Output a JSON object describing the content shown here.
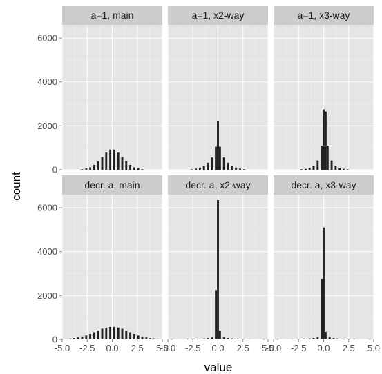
{
  "chart_data": {
    "type": "bar",
    "subtype": "faceted-histogram",
    "xlabel": "value",
    "ylabel": "count",
    "xlim": [
      -5.0,
      5.0
    ],
    "ylim": [
      0,
      6600
    ],
    "x_ticks": [
      -5.0,
      -2.5,
      0.0,
      2.5,
      5.0
    ],
    "x_tick_labels": [
      "-5.0",
      "-2.5",
      "0.0",
      "2.5",
      "5.0"
    ],
    "y_ticks": [
      0,
      2000,
      4000,
      6000
    ],
    "y_tick_labels": [
      "0",
      "2000",
      "4000",
      "6000"
    ],
    "grid": true,
    "bin_width": 0.2,
    "colors": {
      "panel_bg": "#e5e5e5",
      "strip_bg": "#cccccc",
      "grid": "#f2f2f2",
      "bar": "#222222"
    },
    "panels": [
      {
        "label": "a=1, main",
        "bins": [
          {
            "x": -3.0,
            "count": 20
          },
          {
            "x": -2.6,
            "count": 60
          },
          {
            "x": -2.2,
            "count": 110
          },
          {
            "x": -1.8,
            "count": 220
          },
          {
            "x": -1.4,
            "count": 380
          },
          {
            "x": -1.0,
            "count": 580
          },
          {
            "x": -0.6,
            "count": 780
          },
          {
            "x": -0.2,
            "count": 920
          },
          {
            "x": 0.2,
            "count": 920
          },
          {
            "x": 0.6,
            "count": 780
          },
          {
            "x": 1.0,
            "count": 580
          },
          {
            "x": 1.4,
            "count": 380
          },
          {
            "x": 1.8,
            "count": 220
          },
          {
            "x": 2.2,
            "count": 110
          },
          {
            "x": 2.6,
            "count": 60
          },
          {
            "x": 3.0,
            "count": 20
          }
        ]
      },
      {
        "label": "a=1, x2-way",
        "bins": [
          {
            "x": -2.6,
            "count": 20
          },
          {
            "x": -2.2,
            "count": 50
          },
          {
            "x": -1.8,
            "count": 100
          },
          {
            "x": -1.4,
            "count": 180
          },
          {
            "x": -1.0,
            "count": 320
          },
          {
            "x": -0.6,
            "count": 560
          },
          {
            "x": -0.2,
            "count": 1050
          },
          {
            "x": 0.0,
            "count": 2200
          },
          {
            "x": 0.2,
            "count": 1050
          },
          {
            "x": 0.6,
            "count": 560
          },
          {
            "x": 1.0,
            "count": 320
          },
          {
            "x": 1.4,
            "count": 180
          },
          {
            "x": 1.8,
            "count": 100
          },
          {
            "x": 2.2,
            "count": 50
          },
          {
            "x": 2.6,
            "count": 20
          }
        ]
      },
      {
        "label": "a=1, x3-way",
        "bins": [
          {
            "x": -2.2,
            "count": 20
          },
          {
            "x": -1.8,
            "count": 40
          },
          {
            "x": -1.4,
            "count": 90
          },
          {
            "x": -1.0,
            "count": 180
          },
          {
            "x": -0.6,
            "count": 420
          },
          {
            "x": -0.2,
            "count": 1100
          },
          {
            "x": 0.0,
            "count": 2750
          },
          {
            "x": 0.2,
            "count": 2650
          },
          {
            "x": 0.4,
            "count": 1100
          },
          {
            "x": 0.8,
            "count": 420
          },
          {
            "x": 1.2,
            "count": 180
          },
          {
            "x": 1.6,
            "count": 90
          },
          {
            "x": 2.0,
            "count": 40
          },
          {
            "x": 2.4,
            "count": 20
          }
        ]
      },
      {
        "label": "decr. a, main",
        "bins": [
          {
            "x": -4.6,
            "count": 20
          },
          {
            "x": -4.2,
            "count": 40
          },
          {
            "x": -3.8,
            "count": 60
          },
          {
            "x": -3.4,
            "count": 90
          },
          {
            "x": -3.0,
            "count": 130
          },
          {
            "x": -2.6,
            "count": 180
          },
          {
            "x": -2.2,
            "count": 250
          },
          {
            "x": -1.8,
            "count": 330
          },
          {
            "x": -1.4,
            "count": 410
          },
          {
            "x": -1.0,
            "count": 490
          },
          {
            "x": -0.6,
            "count": 540
          },
          {
            "x": -0.2,
            "count": 570
          },
          {
            "x": 0.2,
            "count": 570
          },
          {
            "x": 0.6,
            "count": 540
          },
          {
            "x": 1.0,
            "count": 490
          },
          {
            "x": 1.4,
            "count": 410
          },
          {
            "x": 1.8,
            "count": 330
          },
          {
            "x": 2.2,
            "count": 250
          },
          {
            "x": 2.6,
            "count": 180
          },
          {
            "x": 3.0,
            "count": 130
          },
          {
            "x": 3.4,
            "count": 90
          },
          {
            "x": 3.8,
            "count": 60
          },
          {
            "x": 4.2,
            "count": 40
          },
          {
            "x": 4.6,
            "count": 20
          }
        ]
      },
      {
        "label": "decr. a, x2-way",
        "bins": [
          {
            "x": -4.6,
            "count": 10
          },
          {
            "x": -3.0,
            "count": 20
          },
          {
            "x": -2.0,
            "count": 30
          },
          {
            "x": -1.4,
            "count": 40
          },
          {
            "x": -1.0,
            "count": 60
          },
          {
            "x": -0.6,
            "count": 90
          },
          {
            "x": -0.2,
            "count": 2250
          },
          {
            "x": 0.0,
            "count": 6350
          },
          {
            "x": 0.2,
            "count": 400
          },
          {
            "x": 0.6,
            "count": 90
          },
          {
            "x": 1.0,
            "count": 60
          },
          {
            "x": 1.4,
            "count": 40
          },
          {
            "x": 2.0,
            "count": 30
          },
          {
            "x": 3.0,
            "count": 20
          },
          {
            "x": 4.6,
            "count": 10
          }
        ]
      },
      {
        "label": "decr. a, x3-way",
        "bins": [
          {
            "x": -4.6,
            "count": 10
          },
          {
            "x": -3.0,
            "count": 20
          },
          {
            "x": -2.0,
            "count": 30
          },
          {
            "x": -1.4,
            "count": 40
          },
          {
            "x": -1.0,
            "count": 60
          },
          {
            "x": -0.6,
            "count": 90
          },
          {
            "x": -0.2,
            "count": 2750
          },
          {
            "x": 0.0,
            "count": 5100
          },
          {
            "x": 0.2,
            "count": 350
          },
          {
            "x": 0.6,
            "count": 90
          },
          {
            "x": 1.0,
            "count": 60
          },
          {
            "x": 1.4,
            "count": 40
          },
          {
            "x": 2.0,
            "count": 30
          },
          {
            "x": 3.0,
            "count": 20
          },
          {
            "x": 4.6,
            "count": 10
          }
        ]
      }
    ]
  }
}
